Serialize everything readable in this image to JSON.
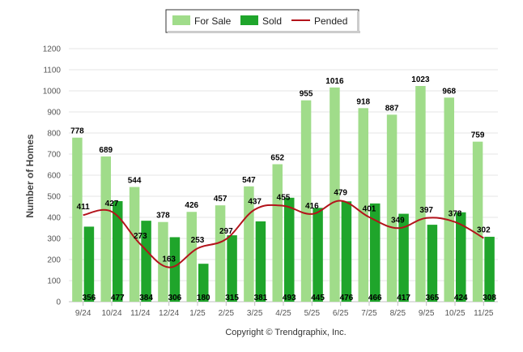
{
  "chart_data": {
    "type": "bar",
    "ylabel": "Number of Homes",
    "xlabel": "",
    "ylim": [
      0,
      1200
    ],
    "ytick_step": 100,
    "yticks": [
      "0",
      "100",
      "200",
      "300",
      "400",
      "500",
      "600",
      "700",
      "800",
      "900",
      "1000",
      "1100",
      "1200"
    ],
    "grid": true,
    "legend_position": "top-center",
    "categories": [
      "9/24",
      "10/24",
      "11/24",
      "12/24",
      "1/25",
      "2/25",
      "3/25",
      "4/25",
      "5/25",
      "6/25",
      "7/25",
      "8/25",
      "9/25",
      "10/25",
      "11/25"
    ],
    "series": [
      {
        "name": "For Sale",
        "type": "bar",
        "color": "#a0dc8a",
        "values": [
          778,
          689,
          544,
          378,
          426,
          457,
          547,
          652,
          955,
          1016,
          918,
          887,
          1023,
          968,
          759
        ]
      },
      {
        "name": "Sold",
        "type": "bar",
        "color": "#1fa52b",
        "values": [
          356,
          477,
          384,
          306,
          180,
          315,
          381,
          493,
          445,
          476,
          466,
          417,
          365,
          424,
          308
        ]
      },
      {
        "name": "Pended",
        "type": "line",
        "color": "#b3131b",
        "values": [
          411,
          427,
          273,
          163,
          253,
          297,
          437,
          455,
          416,
          479,
          401,
          349,
          397,
          378,
          302
        ]
      }
    ]
  },
  "footer": {
    "copyright": "Copyright © Trendgraphix, Inc."
  }
}
